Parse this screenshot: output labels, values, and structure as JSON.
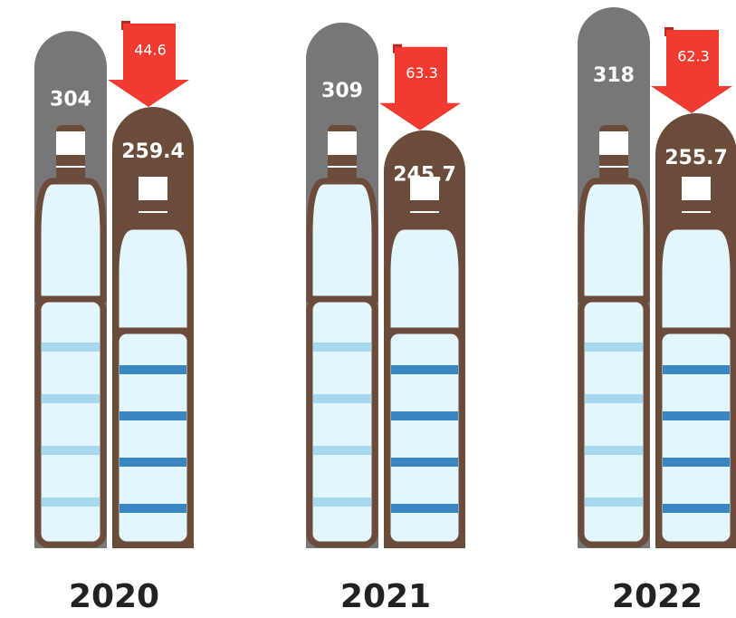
{
  "chart_data": {
    "type": "bar",
    "categories": [
      "2020",
      "2021",
      "2022"
    ],
    "series": [
      {
        "color": "#777777",
        "values": [
          304,
          309,
          318
        ]
      },
      {
        "color": "#6b4c3b",
        "values": [
          259.4,
          245.7,
          255.7
        ]
      }
    ],
    "differences": {
      "color": "#f23b30",
      "values": [
        44.6,
        63.3,
        62.3
      ]
    }
  }
}
